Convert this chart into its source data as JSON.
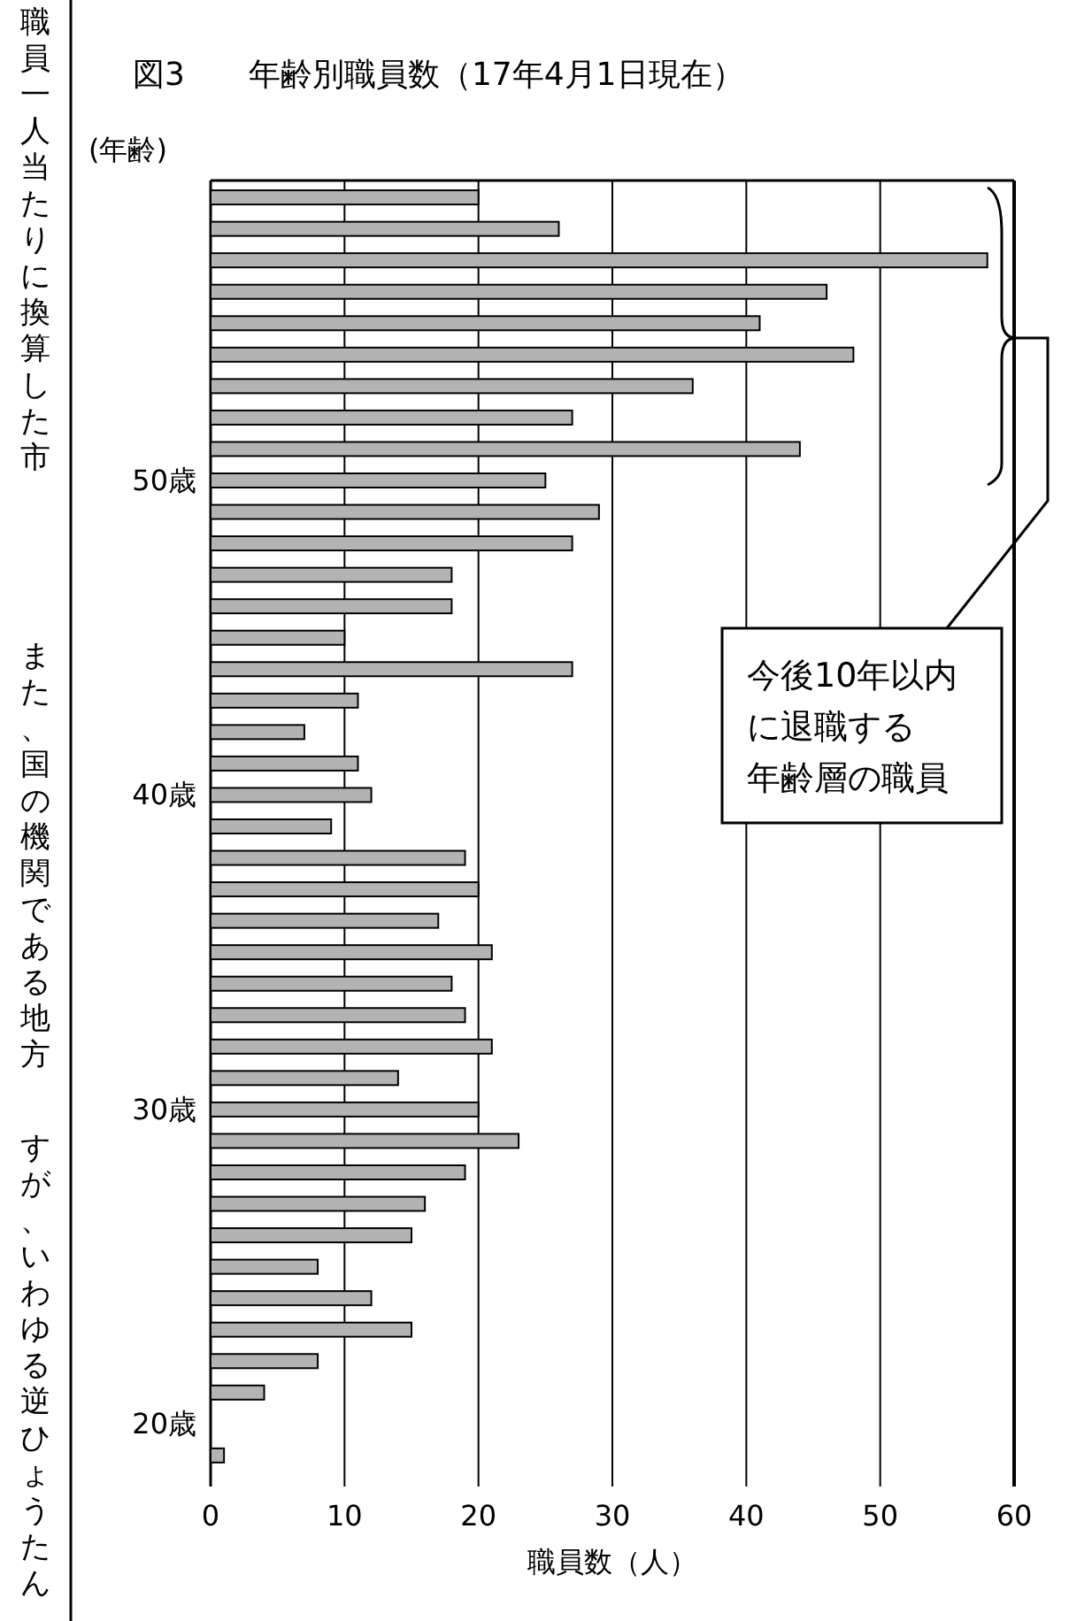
{
  "chart_data": {
    "type": "bar",
    "orientation": "horizontal",
    "title": "図3　　年齢別職員数（17年4月1日現在）",
    "xlabel": "職員数（人）",
    "ylabel": "(年齢)",
    "categories": [
      null,
      null,
      null,
      null,
      null,
      null,
      null,
      null,
      null,
      "50歳",
      null,
      null,
      null,
      null,
      null,
      null,
      null,
      null,
      null,
      "40歳",
      null,
      null,
      null,
      null,
      null,
      null,
      null,
      null,
      null,
      "30歳",
      null,
      null,
      null,
      null,
      null,
      null,
      null,
      null,
      null,
      "20歳",
      null
    ],
    "values": [
      20,
      26,
      58,
      46,
      41,
      48,
      36,
      27,
      44,
      25,
      29,
      27,
      18,
      18,
      10,
      27,
      11,
      7,
      11,
      12,
      9,
      19,
      20,
      17,
      21,
      18,
      19,
      21,
      14,
      20,
      23,
      19,
      16,
      15,
      8,
      12,
      15,
      8,
      4,
      0,
      1
    ],
    "color": "#b3b3b3",
    "xlim": [
      0,
      60
    ],
    "xticks": [
      0,
      10,
      20,
      30,
      40,
      50,
      60
    ],
    "grid": "x",
    "annotations": [
      "今後10年以内に退職する年齢層の職員",
      "職員一人当たりに換算した市",
      "また、国の機関である地方",
      "すが、いわゆる逆ひょうたん"
    ]
  }
}
